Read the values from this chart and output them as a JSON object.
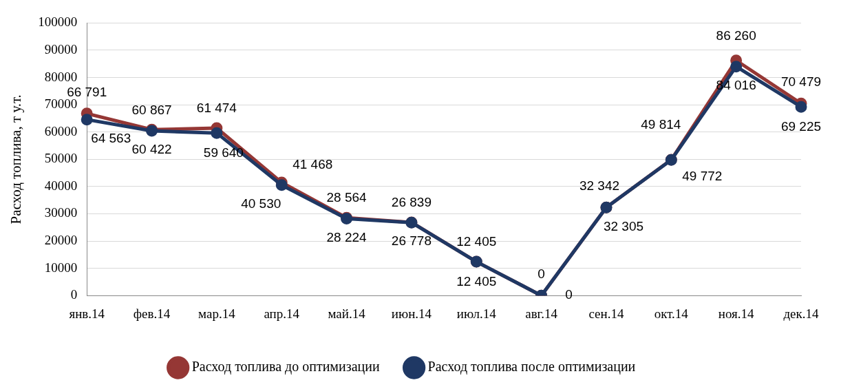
{
  "chart_data": {
    "type": "line",
    "ylabel": "Расход топлива, т у.т.",
    "categories": [
      "янв.14",
      "фев.14",
      "мар.14",
      "апр.14",
      "май.14",
      "июн.14",
      "июл.14",
      "авг.14",
      "сен.14",
      "окт.14",
      "ноя.14",
      "дек.14"
    ],
    "series": [
      {
        "name": "Расход топлива до оптимизации",
        "color": "#953735",
        "values": [
          66791,
          60867,
          61474,
          41468,
          28564,
          26839,
          12405,
          0,
          32342,
          49814,
          86260,
          70479
        ],
        "value_labels": [
          "66 791",
          "60 867",
          "61 474",
          "41 468",
          "28 564",
          "26 839",
          "12 405",
          "0",
          "32 342",
          "49 814",
          "86 260",
          "70 479"
        ]
      },
      {
        "name": "Расход топлива после оптимизации",
        "color": "#1f3864",
        "values": [
          64563,
          60422,
          59640,
          40530,
          28224,
          26778,
          12405,
          0,
          32305,
          49772,
          84016,
          69225
        ],
        "value_labels": [
          "64 563",
          "60 422",
          "59 640",
          "40 530",
          "28 224",
          "26 778",
          "12 405",
          "0",
          "32 305",
          "49 772",
          "84 016",
          "69 225"
        ]
      }
    ],
    "ylim": [
      0,
      100000
    ],
    "yticks": [
      0,
      10000,
      20000,
      30000,
      40000,
      50000,
      60000,
      70000,
      80000,
      90000,
      100000
    ],
    "grid": "y",
    "legend": "bottom",
    "marker": "circle",
    "line_style": "solid"
  }
}
